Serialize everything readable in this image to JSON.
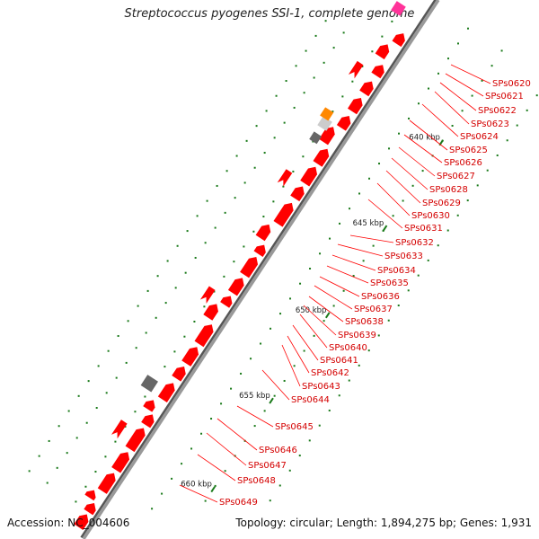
{
  "header": {
    "title": "Streptococcus pyogenes SSI-1, complete genome"
  },
  "footer": {
    "accession": "Accession: NC_004606",
    "summary": "Topology: circular; Length: 1,894,275 bp; Genes: 1,931"
  },
  "scale_ticks": [
    "640 kbp",
    "645 kbp",
    "650 kbp",
    "655 kbp",
    "660 kbp"
  ],
  "gene_labels": [
    "SPs0620",
    "SPs0621",
    "SPs0622",
    "SPs0623",
    "SPs0624",
    "SPs0625",
    "SPs0626",
    "SPs0627",
    "SPs0628",
    "SPs0629",
    "SPs0630",
    "SPs0631",
    "SPs0632",
    "SPs0633",
    "SPs0634",
    "SPs0635",
    "SPs0636",
    "SPs0637",
    "SPs0638",
    "SPs0639",
    "SPs0640",
    "SPs0641",
    "SPs0642",
    "SPs0643",
    "SPs0644",
    "SPs0645",
    "SPs0646",
    "SPs0647",
    "SPs0648",
    "SPs0649"
  ],
  "colors": {
    "cds": "#ff0000",
    "backbone": "#999999",
    "backbone_shadow": "#555555",
    "rna_gray": "#666666",
    "misc_magenta": "#ff3399",
    "misc_orange": "#ff8800",
    "misc_light": "#cccccc",
    "scale_mark": "#1a7a1a",
    "label_line": "#ff0000",
    "label_text": "#d40000"
  }
}
